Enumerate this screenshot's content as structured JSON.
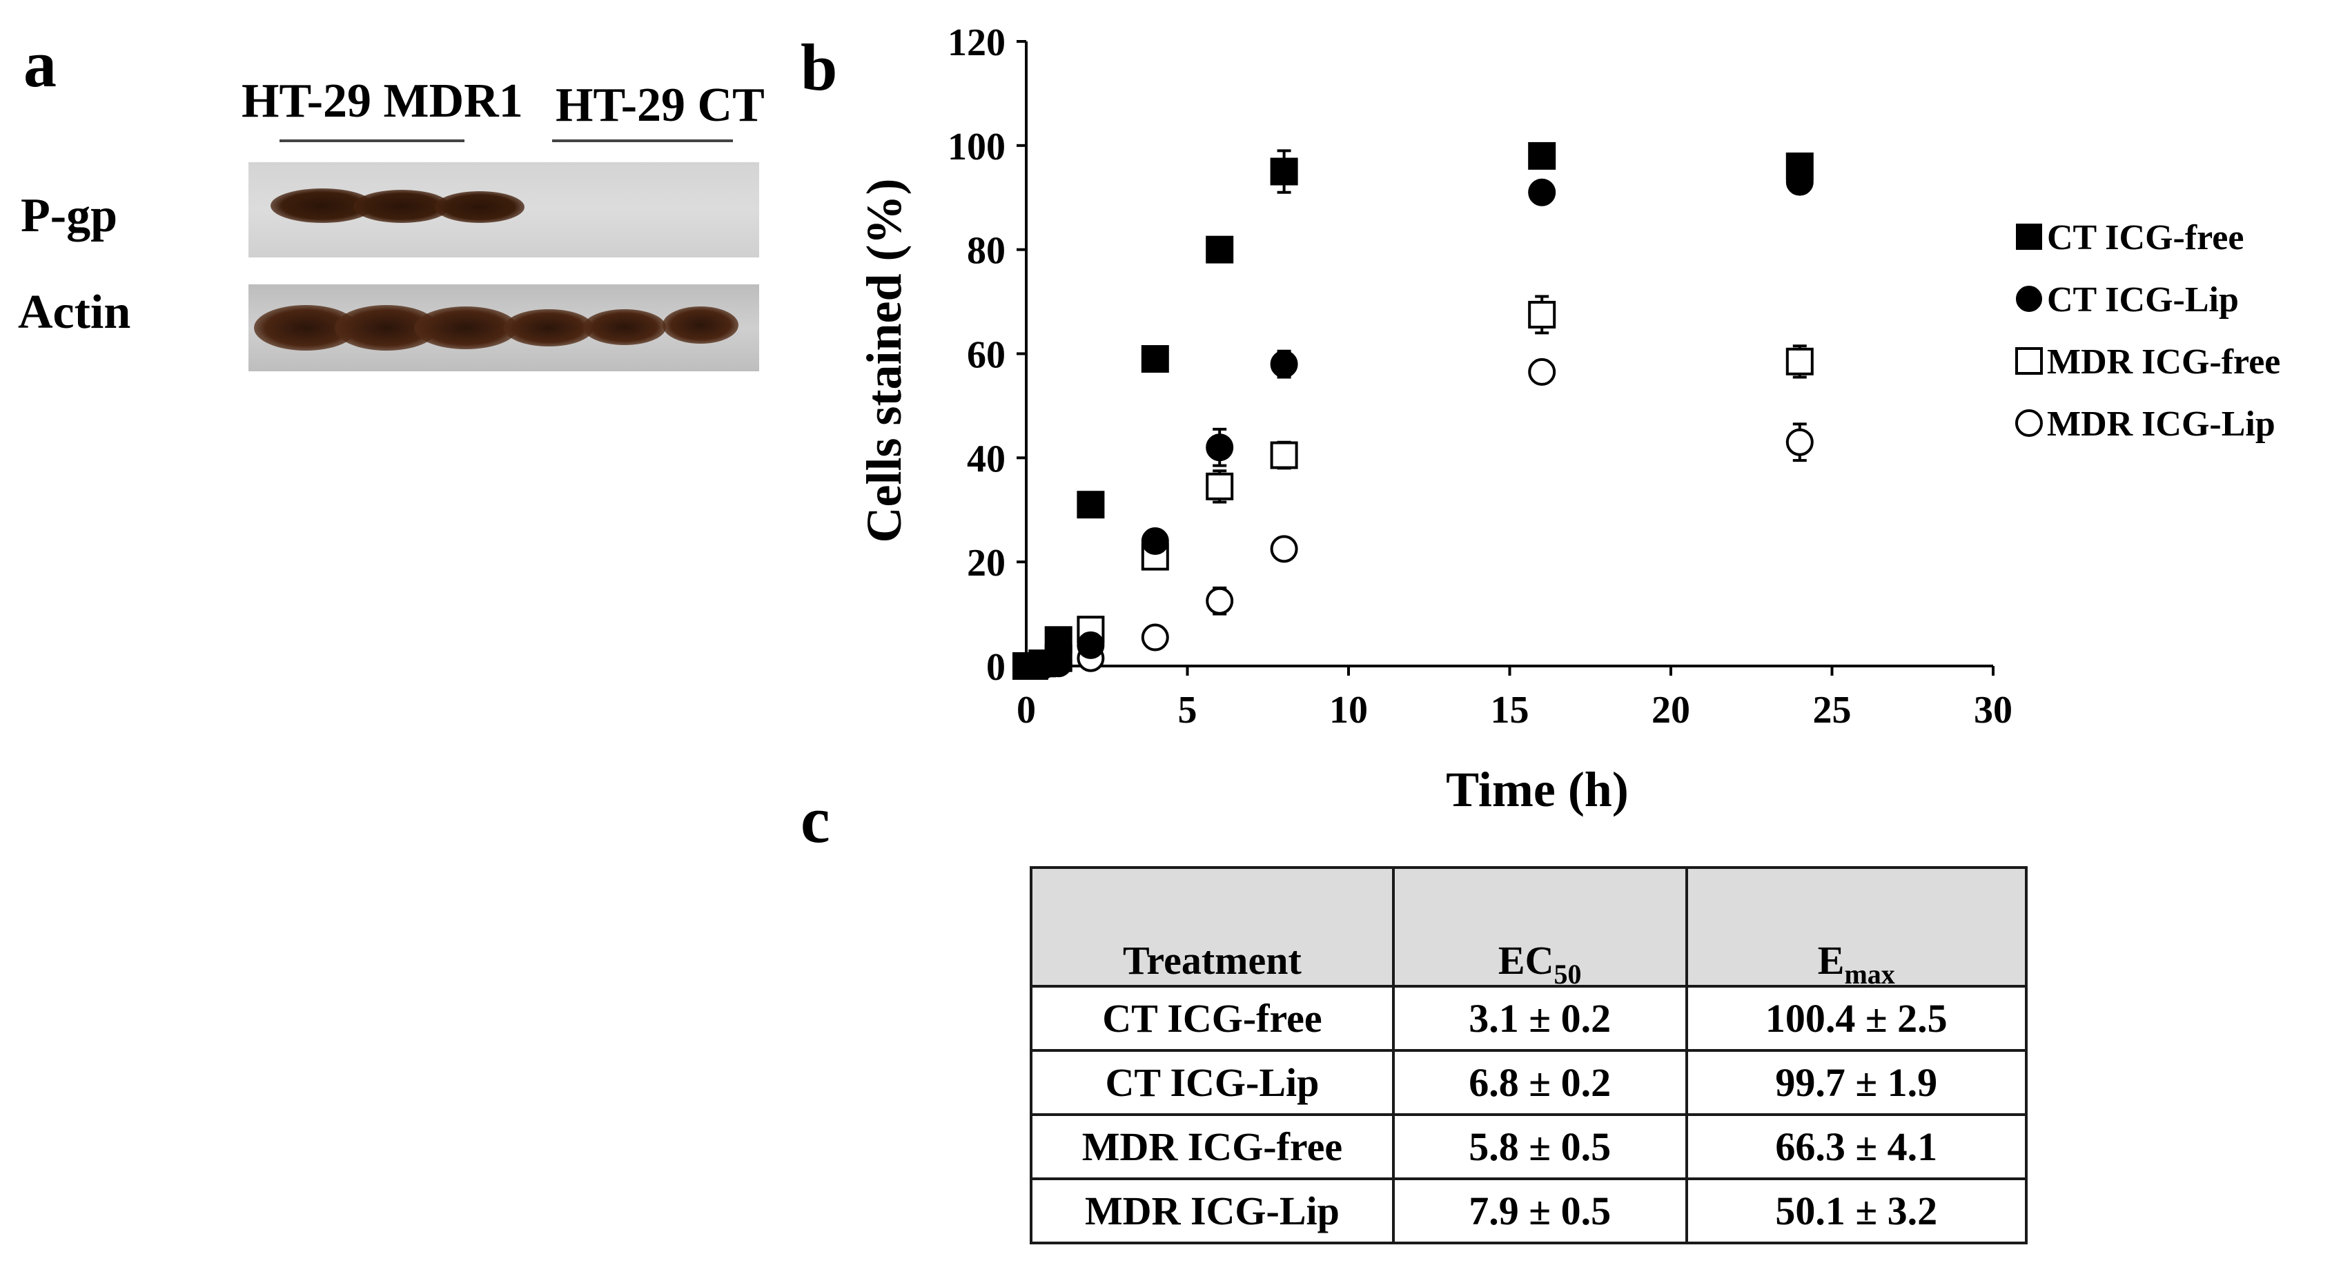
{
  "panels": {
    "a": "a",
    "b": "b",
    "c": "c"
  },
  "blot": {
    "group_1": "HT-29 MDR1",
    "group_2": "HT-29 CT",
    "row_1": "P-gp",
    "row_2": "Actin",
    "pgp_lanes_with_band": 3,
    "actin_lanes_with_band": 6
  },
  "chart_data": {
    "type": "scatter",
    "title": "",
    "xlabel": "Time (h)",
    "ylabel": "Cells stained (%)",
    "xlim": [
      0,
      30
    ],
    "ylim": [
      0,
      120
    ],
    "xticks": [
      0,
      5,
      10,
      15,
      20,
      25,
      30
    ],
    "yticks": [
      0,
      20,
      40,
      60,
      80,
      100,
      120
    ],
    "legend_position": "right",
    "series": [
      {
        "name": "CT ICG-free",
        "marker": "filled-square",
        "x": [
          0,
          0.25,
          0.5,
          1,
          2,
          4,
          6,
          8,
          16,
          24
        ],
        "y": [
          0,
          0,
          0.5,
          5,
          31,
          59,
          80,
          95,
          98,
          96
        ],
        "err": [
          0,
          0,
          0,
          0,
          0,
          0,
          0,
          4,
          0,
          0
        ]
      },
      {
        "name": "CT ICG-Lip",
        "marker": "filled-circle",
        "x": [
          0,
          0.25,
          0.5,
          1,
          2,
          4,
          6,
          8,
          16,
          24
        ],
        "y": [
          0,
          0,
          0.5,
          1,
          4,
          24,
          42,
          58,
          91,
          93
        ],
        "err": [
          0,
          0,
          0,
          0,
          2,
          1,
          3.5,
          2.5,
          0,
          0
        ]
      },
      {
        "name": "MDR ICG-free",
        "marker": "open-square",
        "x": [
          0,
          0.25,
          0.5,
          1,
          2,
          4,
          6,
          8,
          16,
          24
        ],
        "y": [
          0,
          0,
          0.5,
          1.5,
          7,
          21,
          34.5,
          40.5,
          67.5,
          58.5
        ],
        "err": [
          0,
          0,
          0,
          0,
          1,
          2,
          3,
          2.5,
          3.5,
          3
        ]
      },
      {
        "name": "MDR ICG-Lip",
        "marker": "open-circle",
        "x": [
          0,
          0.25,
          0.5,
          1,
          2,
          4,
          6,
          8,
          16,
          24
        ],
        "y": [
          0,
          0,
          0,
          0.5,
          1.5,
          5.5,
          12.5,
          22.5,
          56.5,
          43
        ],
        "err": [
          0,
          0,
          0,
          0,
          1,
          1,
          2.5,
          1.5,
          1.5,
          3.5
        ]
      }
    ]
  },
  "table": {
    "headers": {
      "treatment": "Treatment",
      "ec_main": "EC",
      "ec_sub": "50",
      "emax_main": "E",
      "emax_sub": "max"
    },
    "rows": [
      {
        "treatment": "CT ICG-free",
        "ec50": "3.1 ± 0.2",
        "emax": "100.4 ± 2.5"
      },
      {
        "treatment": "CT ICG-Lip",
        "ec50": "6.8 ± 0.2",
        "emax": "99.7 ± 1.9"
      },
      {
        "treatment": "MDR ICG-free",
        "ec50": "5.8 ± 0.5",
        "emax": "66.3 ± 4.1"
      },
      {
        "treatment": "MDR ICG-Lip",
        "ec50": "7.9 ± 0.5",
        "emax": "50.1 ± 3.2"
      }
    ]
  }
}
